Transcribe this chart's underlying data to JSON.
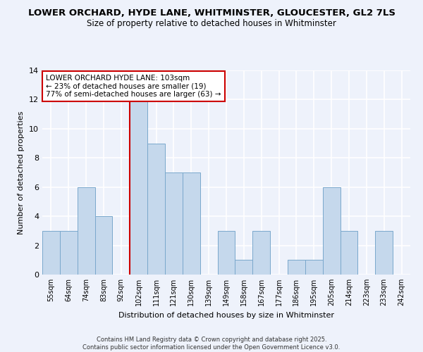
{
  "title": "LOWER ORCHARD, HYDE LANE, WHITMINSTER, GLOUCESTER, GL2 7LS",
  "subtitle": "Size of property relative to detached houses in Whitminster",
  "xlabel": "Distribution of detached houses by size in Whitminster",
  "ylabel": "Number of detached properties",
  "bar_labels": [
    "55sqm",
    "64sqm",
    "74sqm",
    "83sqm",
    "92sqm",
    "102sqm",
    "111sqm",
    "121sqm",
    "130sqm",
    "139sqm",
    "149sqm",
    "158sqm",
    "167sqm",
    "177sqm",
    "186sqm",
    "195sqm",
    "205sqm",
    "214sqm",
    "223sqm",
    "233sqm",
    "242sqm"
  ],
  "bar_values": [
    3,
    3,
    6,
    4,
    0,
    12,
    9,
    7,
    7,
    0,
    3,
    1,
    3,
    0,
    1,
    1,
    6,
    3,
    0,
    3,
    0
  ],
  "bar_color": "#c5d8ec",
  "bar_edge_color": "#7aa8cc",
  "highlight_index": 5,
  "highlight_line_color": "#cc0000",
  "annotation_title": "LOWER ORCHARD HYDE LANE: 103sqm",
  "annotation_line1": "← 23% of detached houses are smaller (19)",
  "annotation_line2": "77% of semi-detached houses are larger (63) →",
  "annotation_box_color": "#ffffff",
  "annotation_box_edge": "#cc0000",
  "ylim": [
    0,
    14
  ],
  "yticks": [
    0,
    2,
    4,
    6,
    8,
    10,
    12,
    14
  ],
  "background_color": "#eef2fb",
  "plot_background": "#eef2fb",
  "footer_line1": "Contains HM Land Registry data © Crown copyright and database right 2025.",
  "footer_line2": "Contains public sector information licensed under the Open Government Licence v3.0.",
  "title_fontsize": 9.5,
  "subtitle_fontsize": 8.5,
  "xlabel_fontsize": 8,
  "ylabel_fontsize": 8
}
